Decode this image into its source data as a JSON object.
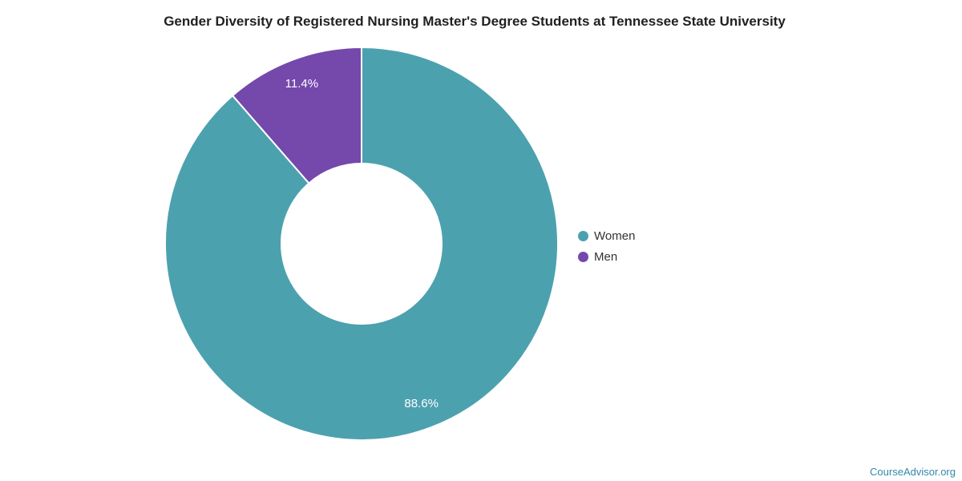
{
  "chart_data": {
    "type": "pie",
    "subtype": "donut",
    "title": "Gender Diversity of Registered Nursing Master's Degree Students at Tennessee State University",
    "series": [
      {
        "name": "Women",
        "value": 88.6,
        "label": "88.6%",
        "color": "#4ca1af"
      },
      {
        "name": "Men",
        "value": 11.4,
        "label": "11.4%",
        "color": "#7548ac"
      }
    ],
    "start_angle_deg": 0,
    "direction": "clockwise",
    "inner_radius_ratio": 0.41,
    "legend_position": "right",
    "data_labels": "inside, white"
  },
  "legend": {
    "items": [
      {
        "label": "Women",
        "color": "#4ca1af"
      },
      {
        "label": "Men",
        "color": "#7548ac"
      }
    ]
  },
  "footer": {
    "label": "CourseAdvisor.org",
    "color": "#3288ab"
  }
}
